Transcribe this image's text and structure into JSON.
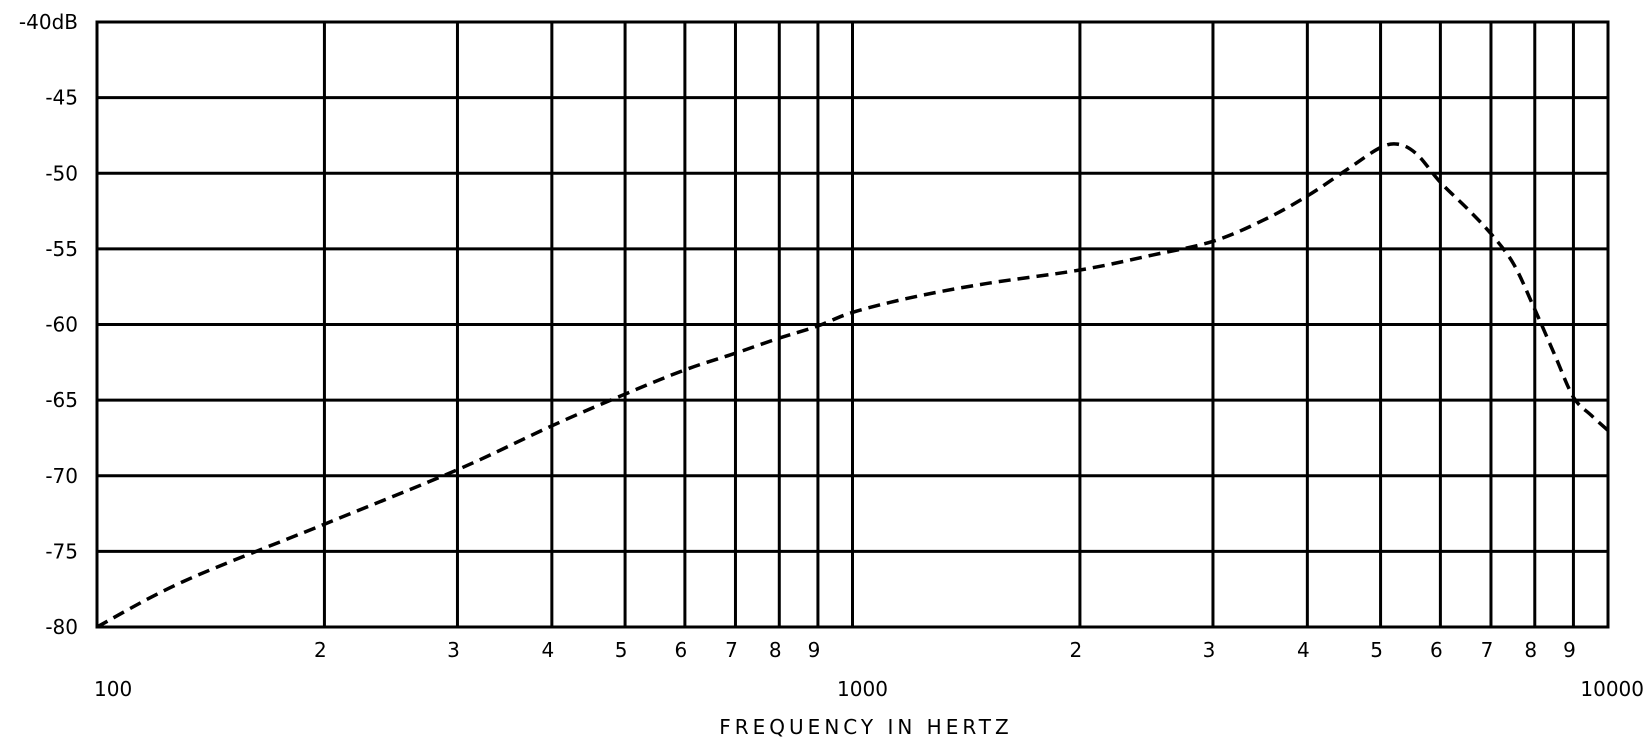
{
  "chart_data": {
    "type": "line",
    "title": "",
    "xlabel": "FREQUENCY IN HERTZ",
    "ylabel": "",
    "x_scale": "log",
    "xlim": [
      100,
      10000
    ],
    "ylim": [
      -80,
      -40
    ],
    "grid": true,
    "y_ticks": [
      {
        "value": -40,
        "label": "-40dB"
      },
      {
        "value": -45,
        "label": "-45"
      },
      {
        "value": -50,
        "label": "-50"
      },
      {
        "value": -55,
        "label": "-55"
      },
      {
        "value": -60,
        "label": "-60"
      },
      {
        "value": -65,
        "label": "-65"
      },
      {
        "value": -70,
        "label": "-70"
      },
      {
        "value": -75,
        "label": "-75"
      },
      {
        "value": -80,
        "label": "-80"
      }
    ],
    "x_minor_ticks": [
      {
        "value": 200,
        "label": "2"
      },
      {
        "value": 300,
        "label": "3"
      },
      {
        "value": 400,
        "label": "4"
      },
      {
        "value": 500,
        "label": "5"
      },
      {
        "value": 600,
        "label": "6"
      },
      {
        "value": 700,
        "label": "7"
      },
      {
        "value": 800,
        "label": "8"
      },
      {
        "value": 900,
        "label": "9"
      },
      {
        "value": 2000,
        "label": "2"
      },
      {
        "value": 3000,
        "label": "3"
      },
      {
        "value": 4000,
        "label": "4"
      },
      {
        "value": 5000,
        "label": "5"
      },
      {
        "value": 6000,
        "label": "6"
      },
      {
        "value": 7000,
        "label": "7"
      },
      {
        "value": 8000,
        "label": "8"
      },
      {
        "value": 9000,
        "label": "9"
      }
    ],
    "x_decade_ticks": [
      {
        "value": 100,
        "label": "100"
      },
      {
        "value": 1000,
        "label": "1000"
      },
      {
        "value": 10000,
        "label": "10000"
      }
    ],
    "series": [
      {
        "line_style": "dashed",
        "x": [
          100,
          130,
          200,
          300,
          400,
          500,
          600,
          700,
          800,
          900,
          1000,
          1200,
          1500,
          2000,
          2500,
          3000,
          3500,
          4000,
          4500,
          5000,
          5300,
          5600,
          6000,
          6500,
          7000,
          7500,
          8000,
          8500,
          9000,
          9500,
          10000
        ],
        "y": [
          -80,
          -77,
          -73.2,
          -69.6,
          -66.7,
          -64.6,
          -63,
          -61.9,
          -60.9,
          -60.1,
          -59.2,
          -58.2,
          -57.3,
          -56.4,
          -55.4,
          -54.5,
          -53.1,
          -51.5,
          -49.8,
          -48.3,
          -48.1,
          -48.8,
          -50.6,
          -52.3,
          -54,
          -56,
          -59,
          -62,
          -64.8,
          -66,
          -67
        ]
      }
    ]
  }
}
